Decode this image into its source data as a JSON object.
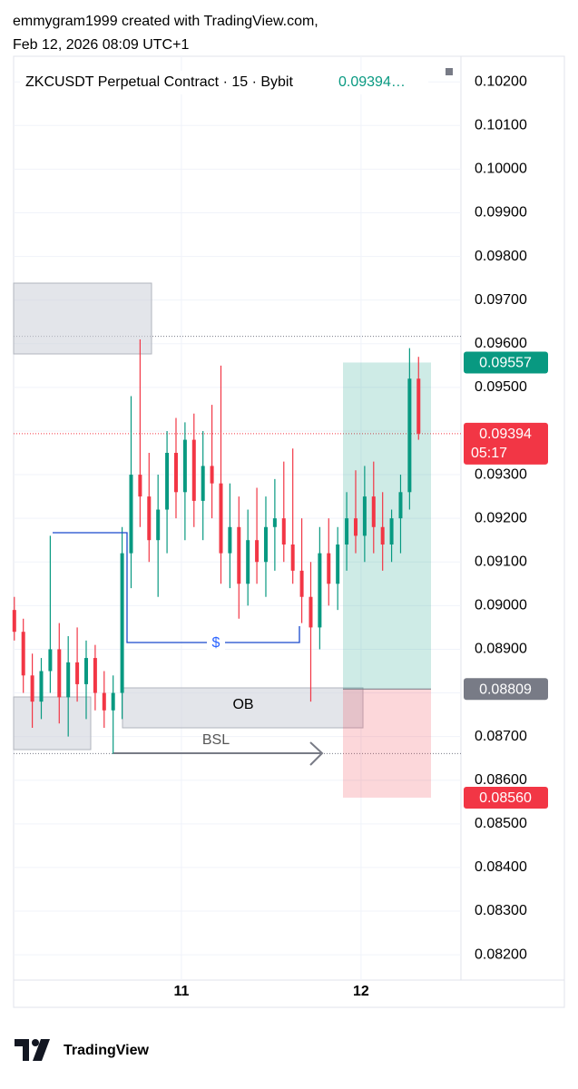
{
  "header": {
    "line1": "emmygram1999 created with TradingView.com,",
    "line2": "Feb 12, 2026 08:09 UTC+1"
  },
  "chart_data": {
    "type": "candlestick",
    "title": "ZKCUSDT Perpetual Contract · 15 · Bybit",
    "last_value_label": "0.09394…",
    "x": [
      10.07,
      10.12,
      10.17,
      10.22,
      10.27,
      10.32,
      10.37,
      10.42,
      10.47,
      10.52,
      10.57,
      10.62,
      10.67,
      10.72,
      10.77,
      10.82,
      10.87,
      10.92,
      10.97,
      11.02,
      11.07,
      11.12,
      11.17,
      11.22,
      11.27,
      11.32,
      11.37,
      11.42,
      11.47,
      11.52,
      11.57,
      11.62,
      11.67,
      11.72,
      11.77,
      11.82,
      11.87,
      11.92,
      11.97,
      12.02,
      12.07,
      12.12,
      12.17,
      12.22,
      12.27,
      12.32
    ],
    "open": [
      0.0899,
      0.0894,
      0.0884,
      0.0878,
      0.0885,
      0.089,
      0.0879,
      0.0887,
      0.0882,
      0.0888,
      0.088,
      0.0876,
      0.088,
      0.0912,
      0.093,
      0.0925,
      0.0915,
      0.0922,
      0.0935,
      0.0926,
      0.0938,
      0.0924,
      0.0932,
      0.0928,
      0.0912,
      0.0918,
      0.0905,
      0.0915,
      0.091,
      0.0918,
      0.092,
      0.0914,
      0.0908,
      0.0902,
      0.0895,
      0.0912,
      0.0905,
      0.0914,
      0.092,
      0.0916,
      0.0925,
      0.0918,
      0.0914,
      0.092,
      0.0926,
      0.0952
    ],
    "high": [
      0.0902,
      0.0897,
      0.0889,
      0.0888,
      0.0916,
      0.0896,
      0.0893,
      0.0895,
      0.0892,
      0.0891,
      0.0885,
      0.0884,
      0.0918,
      0.0948,
      0.0961,
      0.0935,
      0.093,
      0.094,
      0.0943,
      0.0942,
      0.0944,
      0.094,
      0.0946,
      0.0955,
      0.0928,
      0.0925,
      0.0922,
      0.0927,
      0.0925,
      0.0929,
      0.0933,
      0.0936,
      0.092,
      0.091,
      0.0918,
      0.092,
      0.0918,
      0.0926,
      0.0931,
      0.0932,
      0.0933,
      0.0926,
      0.0922,
      0.093,
      0.0959,
      0.0957
    ],
    "low": [
      0.0892,
      0.088,
      0.0872,
      0.0874,
      0.088,
      0.0873,
      0.087,
      0.0878,
      0.0874,
      0.0876,
      0.0872,
      0.0866,
      0.0874,
      0.0904,
      0.0918,
      0.091,
      0.0902,
      0.0912,
      0.092,
      0.0915,
      0.0918,
      0.0915,
      0.092,
      0.0905,
      0.0904,
      0.0897,
      0.09,
      0.0905,
      0.0902,
      0.0908,
      0.091,
      0.0905,
      0.0896,
      0.0878,
      0.089,
      0.09,
      0.0899,
      0.0908,
      0.0912,
      0.091,
      0.0912,
      0.0908,
      0.091,
      0.0912,
      0.0922,
      0.0938
    ],
    "close": [
      0.0894,
      0.0884,
      0.0878,
      0.0885,
      0.089,
      0.0879,
      0.0887,
      0.0882,
      0.0888,
      0.088,
      0.0876,
      0.088,
      0.0912,
      0.093,
      0.0925,
      0.0915,
      0.0922,
      0.0935,
      0.0926,
      0.0938,
      0.0924,
      0.0932,
      0.0928,
      0.0912,
      0.0918,
      0.0905,
      0.0915,
      0.091,
      0.0918,
      0.092,
      0.0914,
      0.0908,
      0.0902,
      0.0895,
      0.0912,
      0.0905,
      0.0914,
      0.092,
      0.0916,
      0.0925,
      0.0918,
      0.0914,
      0.092,
      0.0926,
      0.0952,
      0.09394
    ],
    "up_color": "#089981",
    "down_color": "#f23645",
    "xlim": [
      10.066,
      12.556
    ],
    "xticks": [
      11,
      12
    ],
    "ylim": [
      0.08142,
      0.10242
    ],
    "yticks": [
      {
        "value": 0.102,
        "label": "0.10200"
      },
      {
        "value": 0.101,
        "label": "0.10100"
      },
      {
        "value": 0.1,
        "label": "0.10000"
      },
      {
        "value": 0.099,
        "label": "0.09900"
      },
      {
        "value": 0.098,
        "label": "0.09800"
      },
      {
        "value": 0.097,
        "label": "0.09700"
      },
      {
        "value": 0.096,
        "label": "0.09600"
      },
      {
        "value": 0.095,
        "label": "0.09500"
      },
      {
        "value": 0.094,
        "label": "0.09400"
      },
      {
        "value": 0.093,
        "label": "0.09300"
      },
      {
        "value": 0.092,
        "label": "0.09200"
      },
      {
        "value": 0.091,
        "label": "0.09100"
      },
      {
        "value": 0.09,
        "label": "0.09000"
      },
      {
        "value": 0.089,
        "label": "0.08900"
      },
      {
        "value": 0.088,
        "label": "0.08800"
      },
      {
        "value": 0.087,
        "label": "0.08700"
      },
      {
        "value": 0.086,
        "label": "0.08600"
      },
      {
        "value": 0.085,
        "label": "0.08500"
      },
      {
        "value": 0.084,
        "label": "0.08400"
      },
      {
        "value": 0.083,
        "label": "0.08300"
      },
      {
        "value": 0.082,
        "label": "0.08200"
      }
    ],
    "grid": true,
    "levels": [
      0.09617,
      0.08661
    ],
    "position": {
      "target": {
        "value": 0.09557,
        "label": "0.09557",
        "color": "#089981"
      },
      "entry": {
        "value": 0.08809,
        "label": "0.08809",
        "color": "#787b86"
      },
      "stop": {
        "value": 0.0856,
        "label": "0.08560",
        "color": "#f23645"
      }
    },
    "last_price_label": "0.09394",
    "countdown": "05:17",
    "annotations": {
      "ob": "OB",
      "bsl": "BSL",
      "dollar": "$"
    }
  },
  "footer": {
    "brand": "TradingView"
  }
}
